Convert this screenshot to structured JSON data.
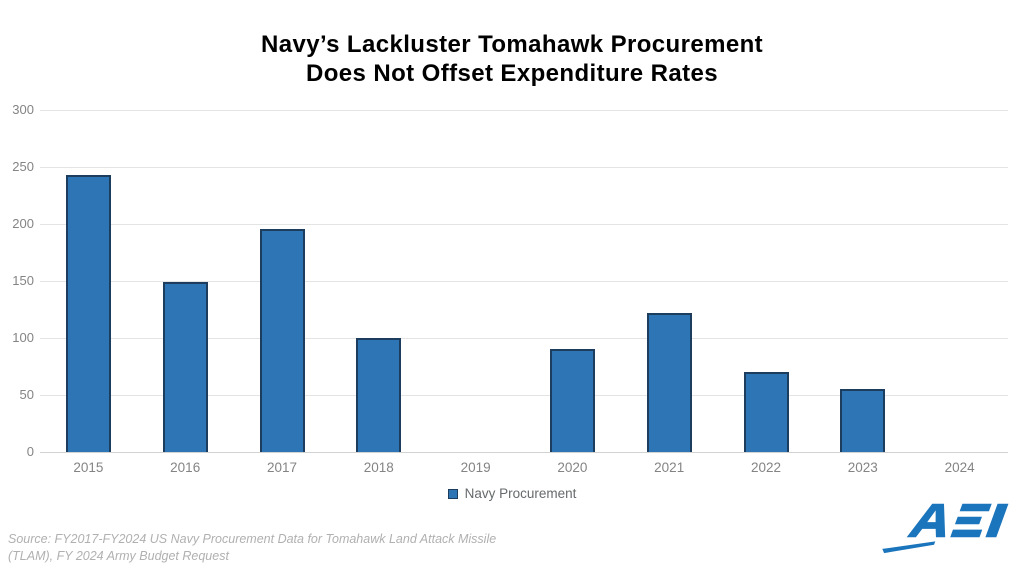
{
  "title": {
    "line1": "Navy’s Lackluster Tomahawk Procurement",
    "line2": "Does Not Offset Expenditure Rates"
  },
  "legend": {
    "label": "Navy Procurement"
  },
  "source": {
    "line1": "Source: FY2017-FY2024 US Navy Procurement Data for Tomahawk Land Attack Missile",
    "line2": "(TLAM), FY 2024 Army Budget Request"
  },
  "logo": {
    "text": "AEI",
    "color": "#1b75bc"
  },
  "colors": {
    "bar_fill": "#2e75b6",
    "bar_border": "#1c3d5e",
    "gridline": "#e4e4e4",
    "axis_line": "#d2d2d2",
    "axis_label": "#848484",
    "legend_text": "#666a6c",
    "source_text": "#b0b0b0",
    "title_text": "#000000"
  },
  "chart_data": {
    "type": "bar",
    "title": "Navy's Lackluster Tomahawk Procurement Does Not Offset Expenditure Rates",
    "categories": [
      "2015",
      "2016",
      "2017",
      "2018",
      "2019",
      "2020",
      "2021",
      "2022",
      "2023",
      "2024"
    ],
    "series": [
      {
        "name": "Navy Procurement",
        "values": [
          243,
          149,
          196,
          100,
          0,
          90,
          122,
          70,
          55,
          0
        ]
      }
    ],
    "xlabel": "",
    "ylabel": "",
    "ylim": [
      0,
      300
    ],
    "ytick_step": 50,
    "yticks": [
      0,
      50,
      100,
      150,
      200,
      250,
      300
    ],
    "grid": true,
    "legend_position": "bottom"
  }
}
